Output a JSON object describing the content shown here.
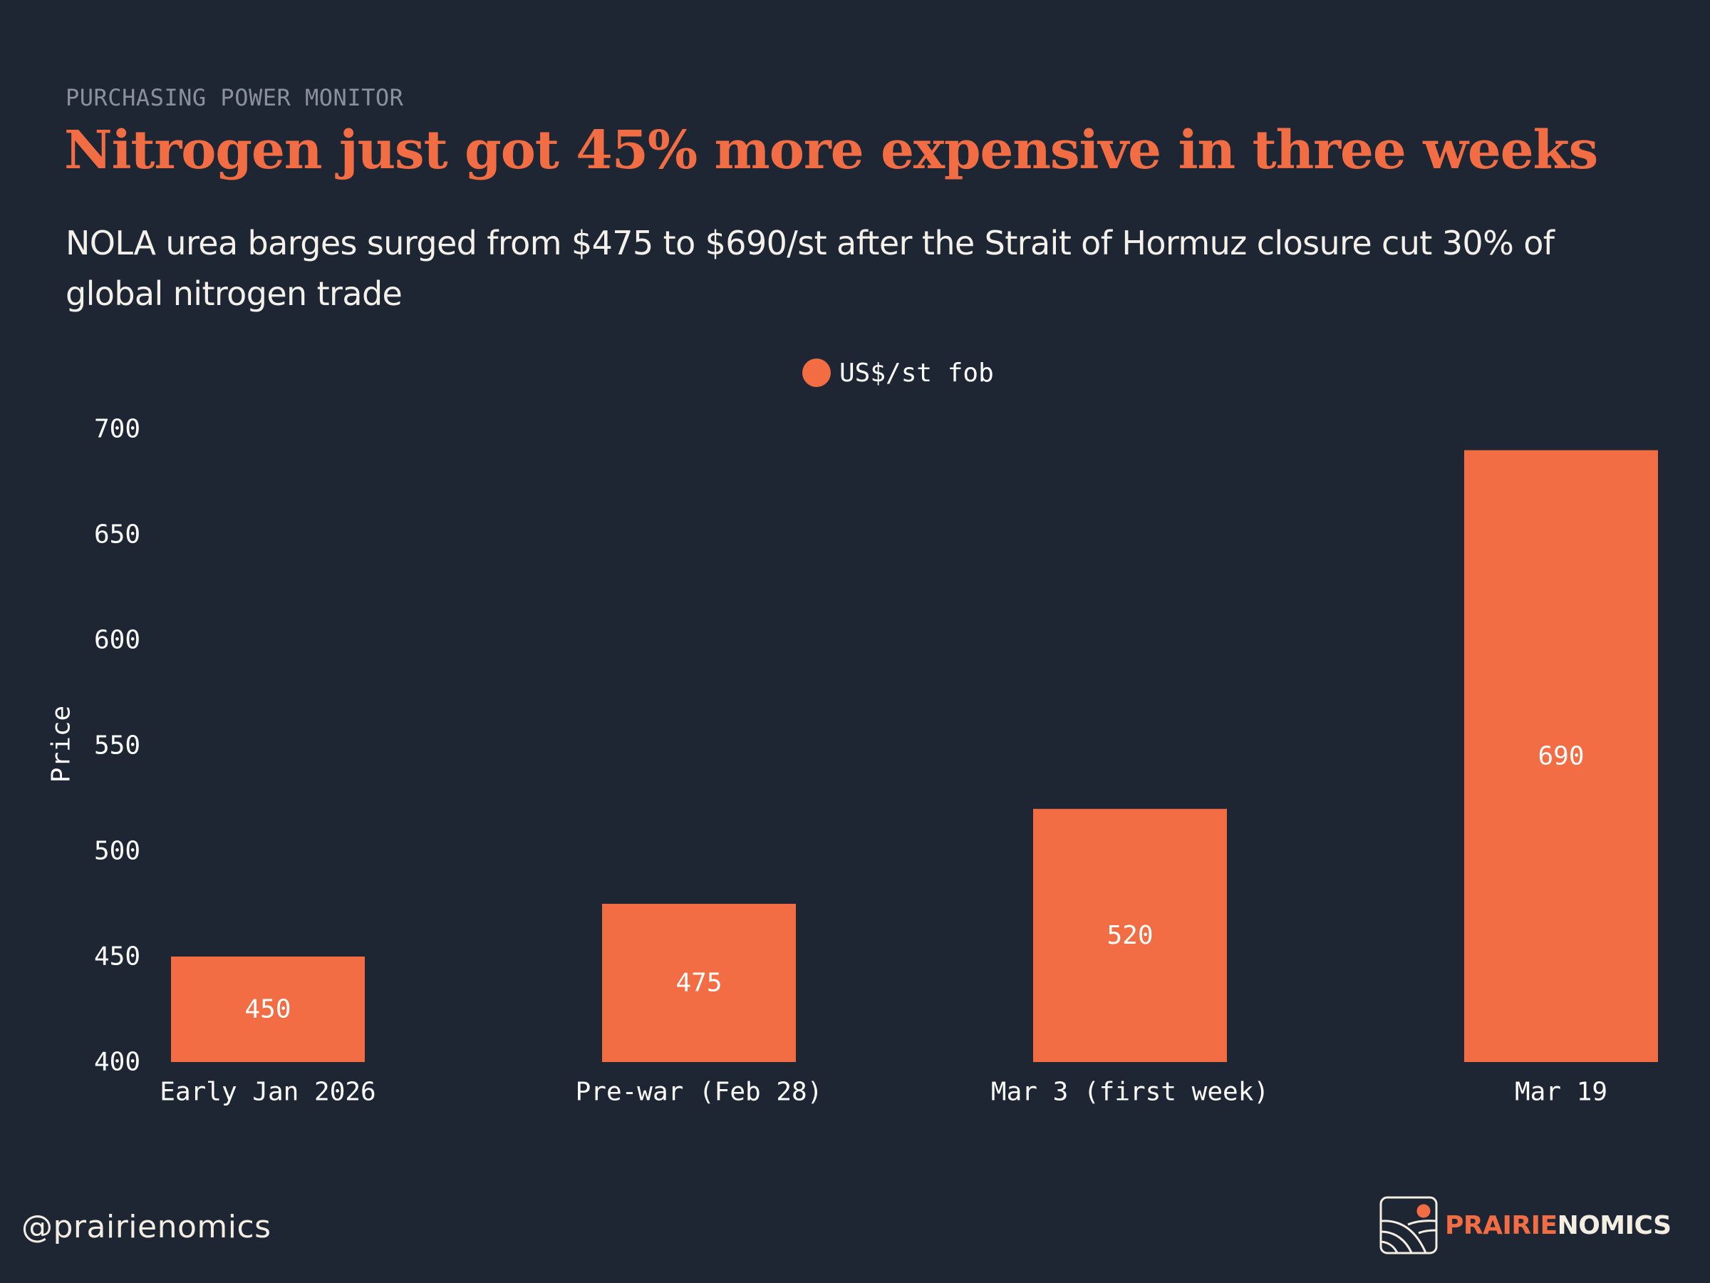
{
  "header": {
    "kicker": "PURCHASING POWER MONITOR",
    "title": "Nitrogen just got 45% more expensive in three weeks",
    "subtitle": "NOLA urea barges surged from $475 to $690/st after the Strait of Hormuz closure cut 30% of global nitrogen trade"
  },
  "colors": {
    "background": "#1e2633",
    "accent": "#f26d44",
    "text": "#ffffff",
    "muted": "#8a919c",
    "cream": "#f3ede2"
  },
  "chart_data": {
    "type": "bar",
    "title": "Nitrogen just got 45% more expensive in three weeks",
    "subtitle": "NOLA urea barges surged from $475 to $690/st after the Strait of Hormuz closure cut 30% of global nitrogen trade",
    "categories": [
      "Early Jan 2026",
      "Pre-war (Feb 28)",
      "Mar 3 (first week)",
      "Mar 19"
    ],
    "series": [
      {
        "name": "US$/st fob",
        "values": [
          450,
          475,
          520,
          690
        ],
        "color": "#f26d44"
      }
    ],
    "data_labels": [
      "450",
      "475",
      "520",
      "690"
    ],
    "xlabel": "",
    "ylabel": "Price",
    "ylim": [
      400,
      700
    ],
    "yticks": [
      400,
      450,
      500,
      550,
      600,
      650,
      700
    ],
    "grid": false,
    "legend": {
      "position": "top-center",
      "entries": [
        "US$/st fob"
      ]
    }
  },
  "footer": {
    "handle": "@prairienomics",
    "brand_part1": "PRAIRIE",
    "brand_part2": "NOMICS",
    "logo_icon": "prairie-sun-hills-logo-icon"
  }
}
